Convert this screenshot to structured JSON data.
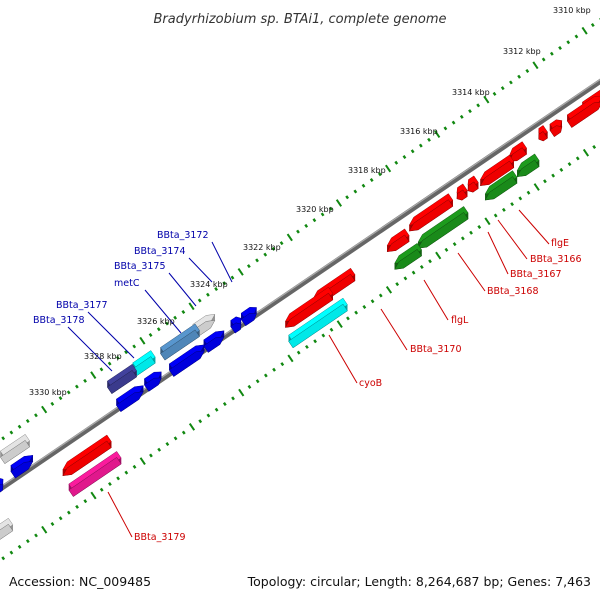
{
  "title": "Bradyrhizobium sp. BTAi1, complete genome",
  "footer": {
    "accession": "Accession: NC_009485",
    "summary": "Topology: circular; Length: 8,264,687 bp; Genes: 7,463"
  },
  "scale_ticks": [
    "3310 kbp",
    "3312 kbp",
    "3314 kbp",
    "3316 kbp",
    "3318 kbp",
    "3320 kbp",
    "3322 kbp",
    "3324 kbp",
    "3326 kbp",
    "3328 kbp",
    "3330 kbp"
  ],
  "labels_top": [
    "BBta_3172",
    "BBta_3174",
    "BBta_3175",
    "metC",
    "BBta_3177",
    "BBta_3178"
  ],
  "labels_bottom": [
    "flgE",
    "BBta_3166",
    "BBta_3167",
    "BBta_3168",
    "flgL",
    "BBta_3170",
    "cyoB",
    "BBta_3179"
  ],
  "colors": {
    "label_top": "#0000aa",
    "label_bottom": "#cc0000",
    "tick": "#118811",
    "backbone": "#777777",
    "red": "#ee0000",
    "green": "#1a8a1a",
    "blue": "#0000dd",
    "cyan": "#00e8e8",
    "magenta": "#e0188c",
    "gray": "#cccccc",
    "steelblue": "#4f86b8",
    "navy": "#3a3a8c"
  }
}
